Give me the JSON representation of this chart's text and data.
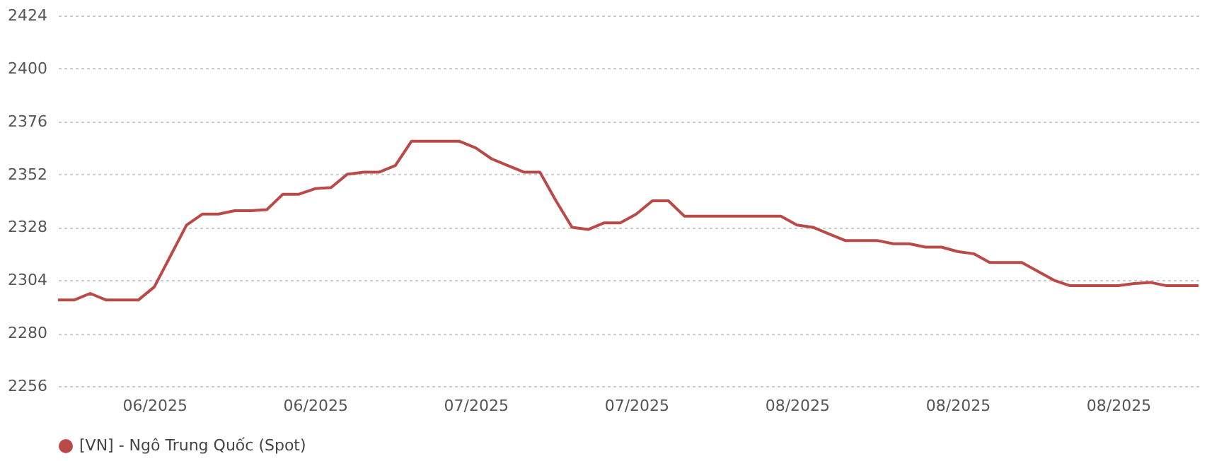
{
  "chart_data": {
    "type": "line",
    "categories": [
      null,
      null,
      null,
      null,
      null,
      null,
      "06/2025",
      null,
      null,
      null,
      null,
      null,
      null,
      null,
      null,
      null,
      "06/2025",
      null,
      null,
      null,
      null,
      null,
      null,
      null,
      null,
      null,
      "07/2025",
      null,
      null,
      null,
      null,
      null,
      null,
      null,
      null,
      null,
      "07/2025",
      null,
      null,
      null,
      null,
      null,
      null,
      null,
      null,
      null,
      "08/2025",
      null,
      null,
      null,
      null,
      null,
      null,
      null,
      null,
      null,
      "08/2025",
      null,
      null,
      null,
      null,
      null,
      null,
      null,
      null,
      null,
      "08/2025",
      null,
      null,
      null,
      null,
      null
    ],
    "series": [
      {
        "name": "[VN] - Ngô Trung Quốc (Spot)",
        "color": "#b94a48",
        "values": [
          2295,
          2295,
          2298,
          2295,
          2295,
          2295,
          2301,
          2315,
          2329,
          2334,
          2334,
          2335.5,
          2335.5,
          2336,
          2343,
          2343,
          2345.5,
          2346,
          2352,
          2353,
          2353,
          2356,
          2367,
          2367,
          2367,
          2367,
          2364,
          2359,
          2356,
          2353,
          2353,
          2340,
          2328,
          2327,
          2330,
          2330,
          2334,
          2340,
          2340,
          2333,
          2333,
          2333,
          2333,
          2333,
          2333,
          2333,
          2329,
          2328,
          2325,
          2322,
          2322,
          2322,
          2320.5,
          2320.5,
          2319,
          2319,
          2317,
          2316,
          2312,
          2312,
          2312,
          2308,
          2304,
          2301.5,
          2301.5,
          2301.5,
          2301.5,
          2302.5,
          2303,
          2301.5,
          2301.5,
          2301.5
        ]
      }
    ],
    "ylim": [
      2256,
      2424
    ],
    "yticks": [
      2256,
      2280,
      2304,
      2328,
      2352,
      2376,
      2400,
      2424
    ],
    "grid": "y",
    "legend": "bottom",
    "marker": "none",
    "line_style": "solid"
  }
}
